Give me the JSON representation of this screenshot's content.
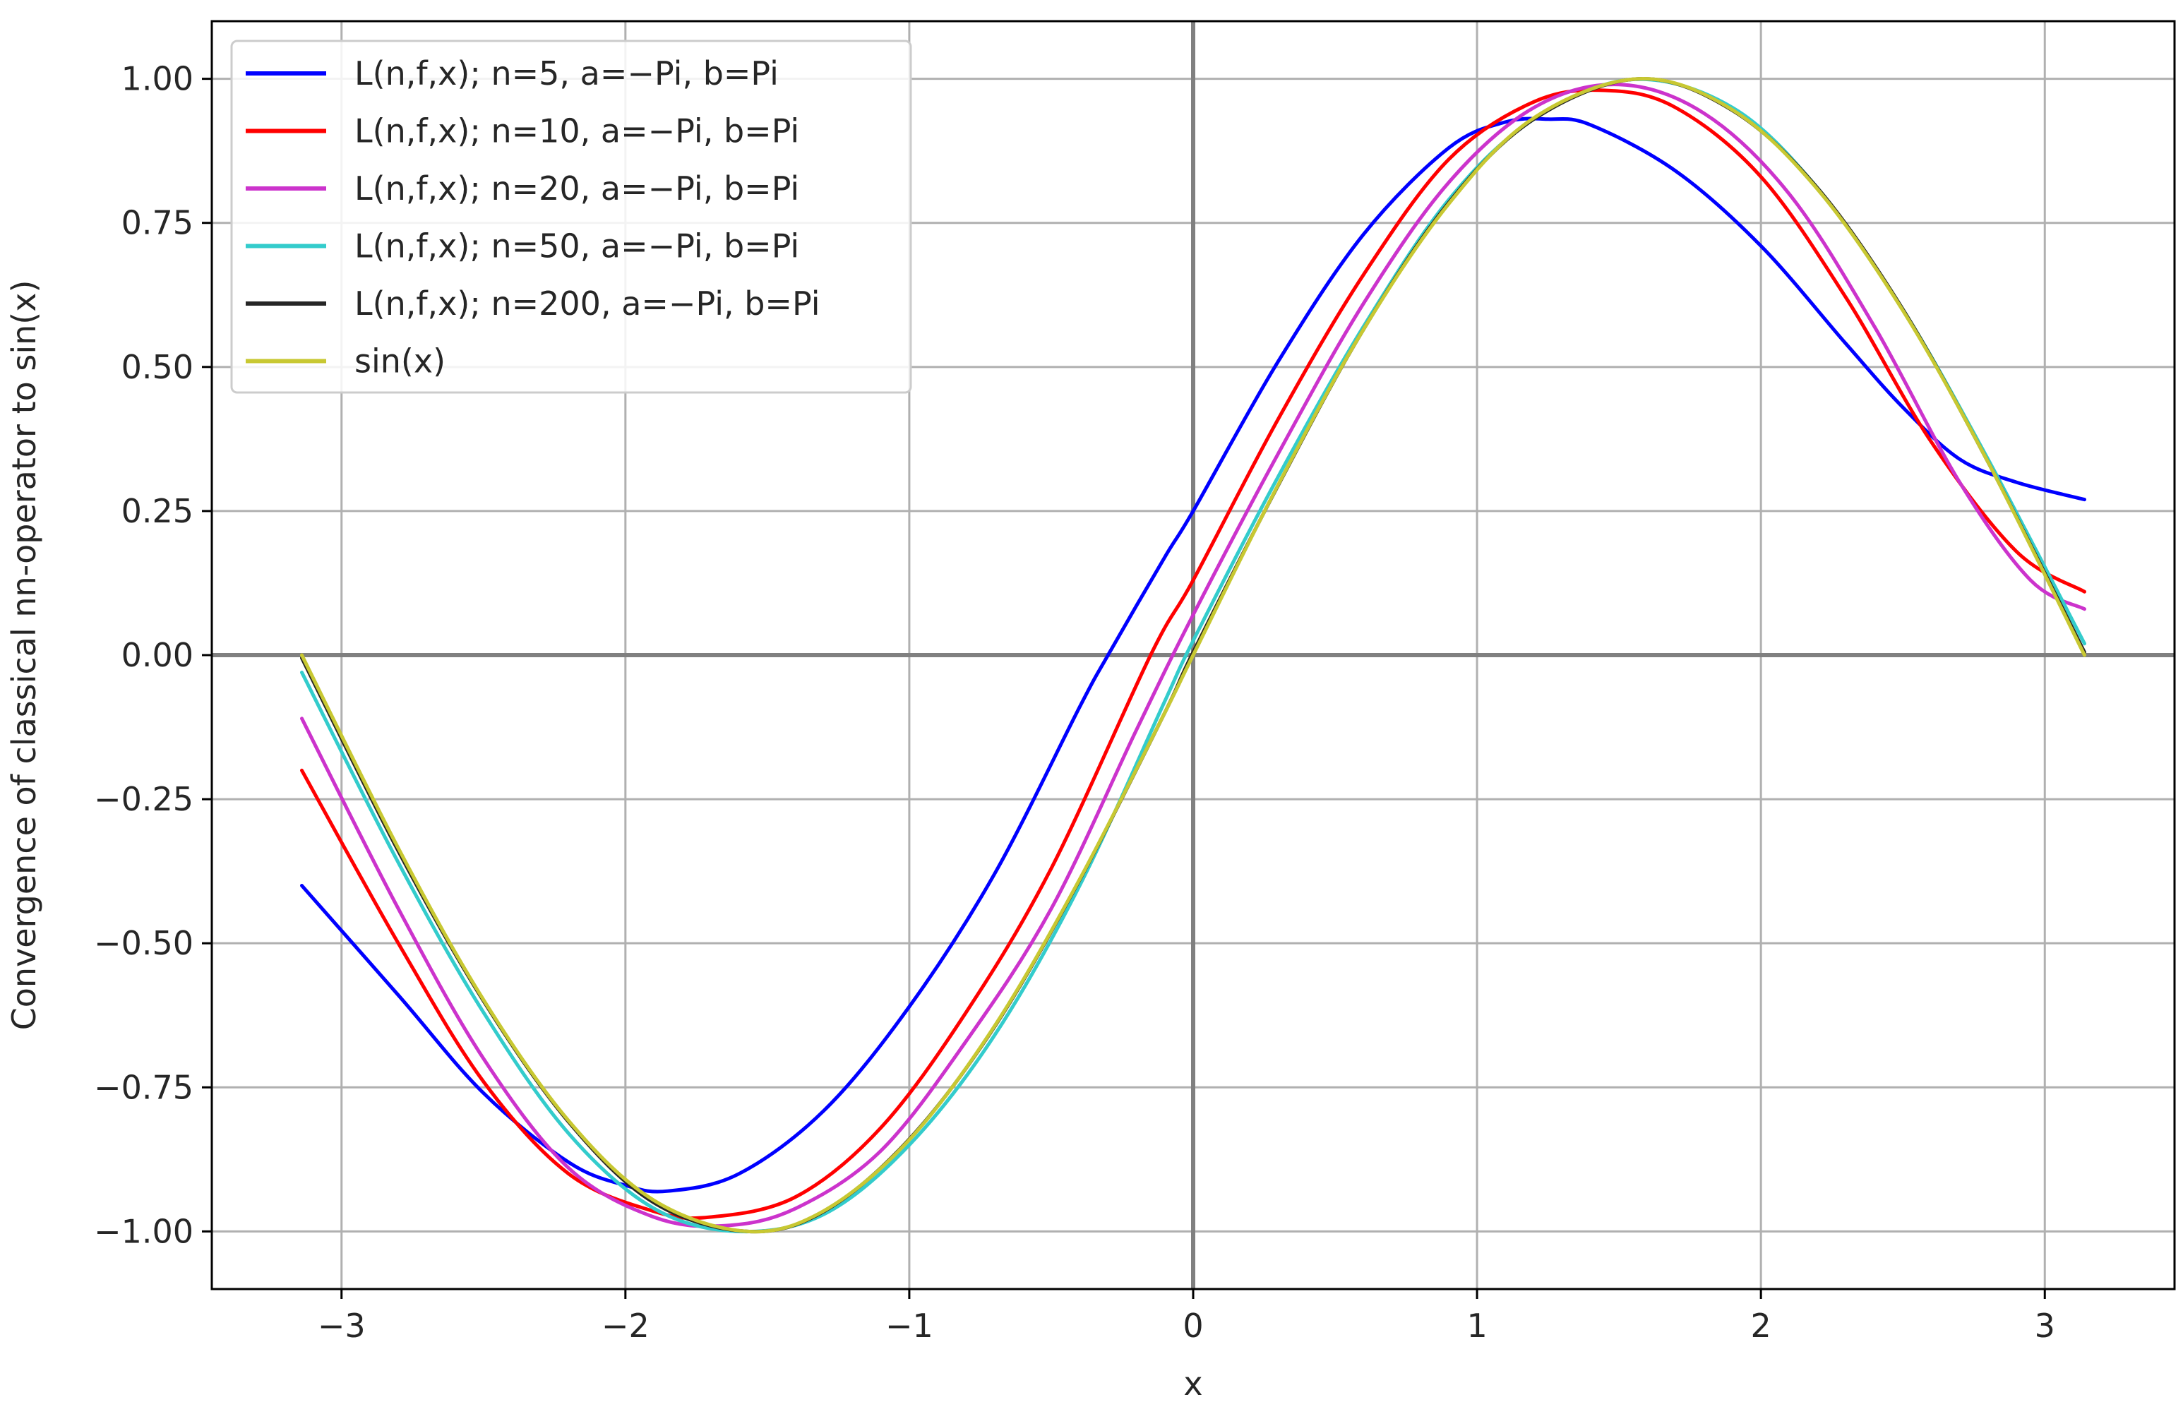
{
  "chart_data": {
    "type": "line",
    "xlabel": "x",
    "ylabel": "Convergence of classical nn-operator to sin(x)",
    "xlim": [
      -3.457,
      3.457
    ],
    "ylim": [
      -1.1,
      1.1
    ],
    "xticks": [
      -3,
      -2,
      -1,
      0,
      1,
      2,
      3
    ],
    "xtick_labels": [
      "−3",
      "−2",
      "−1",
      "0",
      "1",
      "2",
      "3"
    ],
    "yticks": [
      1.0,
      0.75,
      0.5,
      0.25,
      0.0,
      -0.25,
      -0.5,
      -0.75,
      -1.0
    ],
    "ytick_labels": [
      "1.00",
      "0.75",
      "0.50",
      "0.25",
      "0.00",
      "−0.25",
      "−0.50",
      "−0.75",
      "−1.00"
    ],
    "grid": true,
    "zero_lines": true,
    "legend_position": "top-left",
    "series": [
      {
        "name": "L(n,f,x); n=5, a=−Pi, b=Pi",
        "color": "#0000ff",
        "x": [
          -3.14,
          -2.8,
          -2.5,
          -2.2,
          -2.0,
          -1.85,
          -1.6,
          -1.3,
          -1.0,
          -0.7,
          -0.4,
          -0.3,
          -0.1,
          0.0,
          0.3,
          0.6,
          0.9,
          1.1,
          1.25,
          1.4,
          1.7,
          2.0,
          2.3,
          2.5,
          2.7,
          2.9,
          3.14
        ],
        "y": [
          -0.4,
          -0.59,
          -0.76,
          -0.88,
          -0.92,
          -0.93,
          -0.9,
          -0.79,
          -0.61,
          -0.38,
          -0.09,
          0.0,
          0.17,
          0.25,
          0.51,
          0.73,
          0.88,
          0.925,
          0.93,
          0.92,
          0.84,
          0.71,
          0.54,
          0.43,
          0.34,
          0.3,
          0.27
        ]
      },
      {
        "name": "L(n,f,x); n=10, a=−Pi, b=Pi",
        "color": "#ff0000",
        "x": [
          -3.14,
          -2.8,
          -2.5,
          -2.2,
          -1.9,
          -1.7,
          -1.4,
          -1.1,
          -0.8,
          -0.5,
          -0.15,
          0.0,
          0.3,
          0.6,
          0.9,
          1.2,
          1.45,
          1.7,
          2.0,
          2.3,
          2.6,
          2.9,
          3.14
        ],
        "y": [
          -0.2,
          -0.5,
          -0.74,
          -0.9,
          -0.965,
          -0.975,
          -0.94,
          -0.82,
          -0.62,
          -0.37,
          0.0,
          0.13,
          0.41,
          0.66,
          0.86,
          0.96,
          0.98,
          0.95,
          0.83,
          0.62,
          0.37,
          0.18,
          0.11
        ]
      },
      {
        "name": "L(n,f,x); n=20, a=−Pi, b=Pi",
        "color": "#cc33cc",
        "x": [
          -3.14,
          -2.8,
          -2.5,
          -2.2,
          -1.9,
          -1.65,
          -1.4,
          -1.1,
          -0.8,
          -0.5,
          -0.2,
          0.0,
          0.3,
          0.6,
          0.9,
          1.2,
          1.5,
          1.8,
          2.1,
          2.4,
          2.7,
          2.95,
          3.14
        ],
        "y": [
          -0.11,
          -0.44,
          -0.7,
          -0.89,
          -0.975,
          -0.99,
          -0.96,
          -0.86,
          -0.67,
          -0.44,
          -0.13,
          0.07,
          0.35,
          0.61,
          0.82,
          0.95,
          0.99,
          0.94,
          0.8,
          0.57,
          0.3,
          0.13,
          0.08
        ]
      },
      {
        "name": "L(n,f,x); n=50, a=−Pi, b=Pi",
        "color": "#33cccc",
        "x": [
          -3.14,
          -2.8,
          -2.5,
          -2.2,
          -1.9,
          -1.6,
          -1.3,
          -1.0,
          -0.7,
          -0.4,
          -0.1,
          0.0,
          0.3,
          0.6,
          0.9,
          1.2,
          1.55,
          1.9,
          2.2,
          2.5,
          2.8,
          3.14
        ],
        "y": [
          -0.03,
          -0.36,
          -0.62,
          -0.83,
          -0.96,
          -1.0,
          -0.97,
          -0.85,
          -0.66,
          -0.4,
          -0.08,
          0.025,
          0.31,
          0.57,
          0.79,
          0.93,
          0.999,
          0.95,
          0.81,
          0.6,
          0.34,
          0.02
        ]
      },
      {
        "name": "L(n,f,x); n=200, a=−Pi, b=Pi",
        "color": "#262626",
        "x": [
          -3.14,
          -2.8,
          -2.5,
          -2.2,
          -1.9,
          -1.57,
          -1.3,
          -1.0,
          -0.7,
          -0.4,
          -0.1,
          0.0,
          0.3,
          0.6,
          0.9,
          1.2,
          1.57,
          1.9,
          2.2,
          2.5,
          2.8,
          3.14
        ],
        "y": [
          -0.005,
          -0.34,
          -0.6,
          -0.81,
          -0.95,
          -1.0,
          -0.965,
          -0.84,
          -0.645,
          -0.39,
          -0.1,
          0.005,
          0.295,
          0.565,
          0.785,
          0.93,
          1.0,
          0.945,
          0.81,
          0.6,
          0.335,
          0.005
        ]
      },
      {
        "name": "sin(x)",
        "color": "#c8c832",
        "x": [
          -3.14,
          -2.8,
          -2.5,
          -2.2,
          -1.9,
          -1.57,
          -1.3,
          -1.0,
          -0.7,
          -0.4,
          -0.1,
          0.0,
          0.3,
          0.6,
          0.9,
          1.2,
          1.57,
          1.9,
          2.2,
          2.5,
          2.8,
          3.14
        ],
        "y": [
          0.0,
          -0.335,
          -0.598,
          -0.808,
          -0.946,
          -1.0,
          -0.964,
          -0.841,
          -0.644,
          -0.389,
          -0.1,
          0.0,
          0.296,
          0.565,
          0.783,
          0.932,
          1.0,
          0.946,
          0.808,
          0.598,
          0.335,
          0.0
        ]
      }
    ]
  }
}
